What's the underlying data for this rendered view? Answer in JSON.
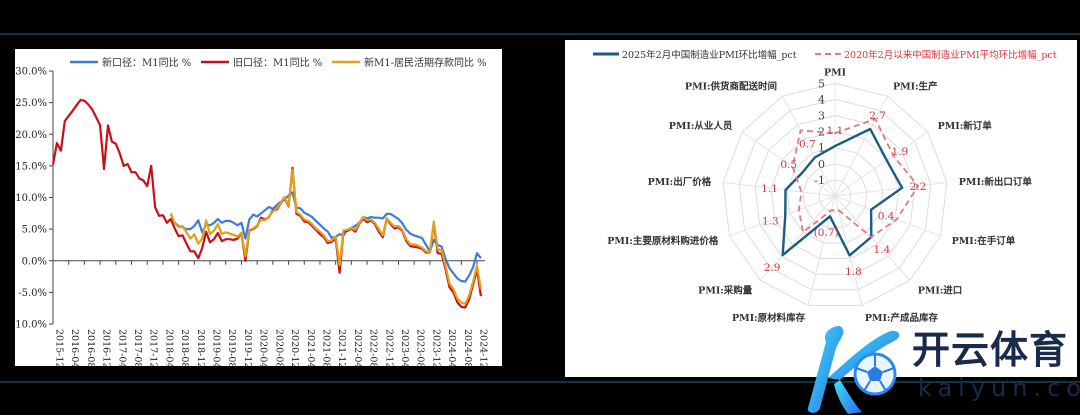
{
  "chart_data": [
    {
      "type": "line",
      "title": "",
      "xlabel": "",
      "ylabel": "",
      "ylim": [
        -10,
        30
      ],
      "y_ticks": [
        "30.0%",
        "25.0%",
        "20.0%",
        "15.0%",
        "10.0%",
        "5.0%",
        "0.0%",
        "-5.0%",
        "-10.0%"
      ],
      "y_tick_values": [
        30,
        25,
        20,
        15,
        10,
        5,
        0,
        -5,
        -10
      ],
      "x_ticks": [
        "2015-12",
        "2016-04",
        "2016-08",
        "2016-12",
        "2017-04",
        "2017-08",
        "2017-12",
        "2018-04",
        "2018-08",
        "2018-12",
        "2019-04",
        "2019-08",
        "2019-12",
        "2020-04",
        "2020-08",
        "2020-12",
        "2021-04",
        "2021-08",
        "2021-12",
        "2022-04",
        "2022-08",
        "2022-12",
        "2023-04",
        "2023-08",
        "2023-12",
        "2024-04",
        "2024-08",
        "2024-12"
      ],
      "x_start": "2015-12",
      "legend_position": "top",
      "series": [
        {
          "name": "新口径：M1同比 %",
          "color": "#3b7dd8",
          "start_index": 30,
          "values": [
            7.4,
            6.0,
            5.5,
            5.3,
            5.0,
            5.0,
            5.5,
            6.4,
            4.5,
            5.7,
            5.6,
            6.0,
            6.6,
            6.0,
            6.3,
            6.3,
            6.0,
            5.6,
            6.0,
            3.5,
            6.5,
            7.3,
            7.0,
            7.5,
            8.0,
            8.5,
            8.2,
            8.8,
            9.3,
            9.7,
            10.3,
            10.8,
            8.4,
            8.3,
            7.6,
            7.3,
            6.9,
            6.3,
            5.7,
            5.1,
            4.6,
            3.6,
            3.8,
            4.2,
            4.0,
            4.9,
            5.2,
            5.5,
            6.0,
            6.9,
            6.7,
            6.9,
            6.8,
            6.8,
            6.7,
            7.4,
            7.4,
            7.0,
            6.6,
            5.9,
            4.9,
            4.3,
            4.0,
            3.8,
            3.6,
            2.5,
            1.5,
            3.3,
            2.5,
            2.2,
            0.3,
            -1.2,
            -2.0,
            -2.8,
            -3.2,
            -3.3,
            -2.3,
            -1.0,
            1.2,
            0.4
          ]
        },
        {
          "name": "旧口径：M1同比 %",
          "color": "#c8101a",
          "start_index": 0,
          "values": [
            15.2,
            18.6,
            17.4,
            22.1,
            22.9,
            23.7,
            24.6,
            25.4,
            25.3,
            24.7,
            23.9,
            22.7,
            21.4,
            14.5,
            21.4,
            18.8,
            18.5,
            17.0,
            15.0,
            15.3,
            14.0,
            14.0,
            13.0,
            12.7,
            11.8,
            15.0,
            8.5,
            7.1,
            7.2,
            6.0,
            6.6,
            5.1,
            3.9,
            4.0,
            2.7,
            1.5,
            1.5,
            0.4,
            2.0,
            4.6,
            2.9,
            3.4,
            4.4,
            3.1,
            3.4,
            3.4,
            3.3,
            3.5,
            4.4,
            0.0,
            4.8,
            5.0,
            5.5,
            6.8,
            6.5,
            6.9,
            8.0,
            8.1,
            9.1,
            10.0,
            8.6,
            14.7,
            7.4,
            7.1,
            6.2,
            6.1,
            5.5,
            4.9,
            4.2,
            3.7,
            2.8,
            3.0,
            3.5,
            -1.9,
            4.7,
            4.7,
            5.1,
            4.6,
            5.8,
            6.7,
            6.1,
            6.4,
            5.8,
            4.6,
            3.7,
            6.7,
            5.8,
            5.1,
            5.3,
            4.7,
            3.1,
            2.3,
            2.2,
            2.1,
            1.9,
            1.3,
            1.3,
            5.9,
            1.2,
            1.1,
            -1.4,
            -4.2,
            -5.0,
            -6.6,
            -7.3,
            -7.4,
            -6.1,
            -3.7,
            -1.4,
            -5.6
          ]
        },
        {
          "name": "新M1-居民活期存款同比 %",
          "color": "#e0a21a",
          "start_index": 30,
          "values": [
            7.5,
            6.0,
            5.3,
            5.5,
            4.5,
            3.5,
            4.2,
            2.7,
            3.5,
            6.4,
            4.2,
            4.8,
            5.8,
            4.2,
            4.5,
            4.3,
            4.1,
            3.8,
            4.4,
            0.7,
            4.9,
            5.1,
            5.6,
            6.5,
            6.4,
            7.0,
            7.8,
            8.3,
            9.2,
            10.1,
            8.7,
            14.4,
            7.7,
            7.3,
            6.5,
            6.3,
            5.8,
            5.1,
            4.6,
            4.0,
            3.1,
            3.2,
            3.8,
            -0.7,
            4.8,
            4.9,
            5.2,
            4.9,
            5.9,
            6.9,
            6.4,
            6.5,
            6.0,
            5.0,
            4.0,
            6.7,
            6.0,
            5.4,
            5.5,
            4.9,
            3.4,
            2.6,
            2.6,
            2.4,
            2.1,
            1.5,
            1.3,
            6.2,
            1.8,
            1.7,
            -0.9,
            -3.6,
            -4.5,
            -6.0,
            -6.6,
            -6.8,
            -5.5,
            -3.3,
            -0.8,
            -4.5
          ]
        }
      ]
    },
    {
      "type": "radar",
      "title": "",
      "rlim": [
        -2,
        5
      ],
      "r_ticks": [
        "5",
        "4",
        "3",
        "2",
        "1",
        "0",
        "-1"
      ],
      "r_tick_values": [
        5,
        4,
        3,
        2,
        1,
        0,
        -1
      ],
      "legend_position": "top",
      "axes": [
        "PMI",
        "PMI:生产",
        "PMI:新订单",
        "PMI:新出口订单",
        "PMI:在手订单",
        "PMI:进口",
        "PMI:产成品库存",
        "PMI:原材料库存",
        "PMI:采购量",
        "PMI:主要原材料购进价格",
        "PMI:出厂价格",
        "PMI:从业人员",
        "PMI:供货商配送时间"
      ],
      "series": [
        {
          "name": "2025年2月中国制造业PMI环比增幅_pct",
          "color": "#1b5c80",
          "style": "solid",
          "values": [
            1.1,
            2.7,
            1.9,
            2.2,
            0.4,
            1.4,
            1.8,
            -0.7,
            2.9,
            1.3,
            1.1,
            0.5,
            0.7
          ],
          "data_labels": [
            "1.1",
            "2.7",
            "1.9",
            "2.2",
            "0.4",
            "1.4",
            "1.8",
            "(0.7)",
            "2.9",
            "1.3",
            "1.1",
            "0.5",
            "0.7"
          ],
          "label_color": "#d9343f"
        },
        {
          "name": "2020年2月以来中国制造业PMI平均环比增幅_pct",
          "color": "#e07a80",
          "style": "dashed",
          "values": [
            1.9,
            3.4,
            2.4,
            3.2,
            2.1,
            1.4,
            -1.1,
            -1.1,
            1.0,
            0.4,
            0.1,
            1.2,
            2.6
          ]
        }
      ]
    }
  ],
  "watermark": {
    "text": "开云体育",
    "domain": "kaiyun.com"
  }
}
